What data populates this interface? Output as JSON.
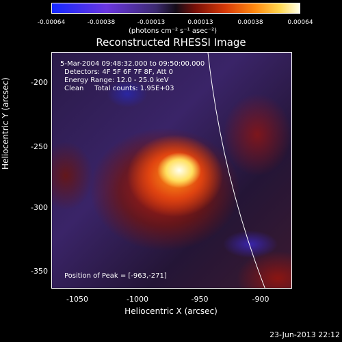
{
  "colorbar": {
    "tick_labels": [
      "-0.00064",
      "-0.00038",
      "-0.00013",
      "0.00013",
      "0.00038",
      "0.00064"
    ],
    "units": "(photons cm⁻² s⁻¹ asec⁻²)"
  },
  "title": "Reconstructed RHESSI Image",
  "info": {
    "time_range": "5-Mar-2004 09:48:32.000 to 09:50:00.000",
    "detectors": "Detectors: 4F 5F 6F 7F 8F, Att 0",
    "energy": "Energy Range: 12.0 - 25.0 keV",
    "clean": "Clean     Total counts: 1.95E+03"
  },
  "peak": "Position of Peak = [-963,-271]",
  "axes": {
    "xlabel": "Heliocentric X (arcsec)",
    "ylabel": "Heliocentric Y (arcsec)",
    "x_ticks": [
      "-1050",
      "-1000",
      "-950",
      "-900"
    ],
    "y_ticks": [
      "-200",
      "-250",
      "-300",
      "-350"
    ]
  },
  "footer": {
    "date": "23-Jun-2013 22:12"
  }
}
